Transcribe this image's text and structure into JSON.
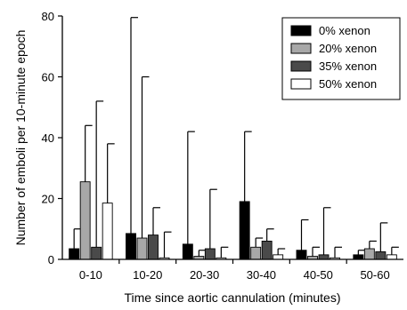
{
  "chart_data": {
    "type": "bar",
    "title": "",
    "xlabel": "Time since aortic cannulation (minutes)",
    "ylabel": "Number of emboli per 10-minute epoch",
    "ylim": [
      0,
      80
    ],
    "yticks": [
      0,
      20,
      40,
      60,
      80
    ],
    "categories": [
      "0-10",
      "10-20",
      "20-30",
      "30-40",
      "40-50",
      "50-60"
    ],
    "grid": false,
    "legend_position": "top-right",
    "error_bars": "upper",
    "series": [
      {
        "name": "0% xenon",
        "color": "#000000",
        "values": [
          3.5,
          8.5,
          5,
          19,
          3,
          1.5
        ],
        "upper": [
          10,
          79.5,
          42,
          42,
          13,
          3
        ]
      },
      {
        "name": "20% xenon",
        "color": "#a8a8a8",
        "values": [
          25.5,
          7,
          1,
          4,
          1,
          3.5
        ],
        "upper": [
          44,
          60,
          3,
          7,
          4,
          6
        ]
      },
      {
        "name": "35% xenon",
        "color": "#4a4a4a",
        "values": [
          4,
          8,
          3.5,
          6,
          1.5,
          2.5
        ],
        "upper": [
          52,
          17,
          23,
          10,
          17,
          12
        ]
      },
      {
        "name": "50% xenon",
        "color": "#ffffff",
        "values": [
          18.5,
          0.5,
          0.5,
          1.5,
          0.5,
          1.5
        ],
        "upper": [
          38,
          9,
          4,
          3.5,
          4,
          4
        ]
      }
    ]
  }
}
